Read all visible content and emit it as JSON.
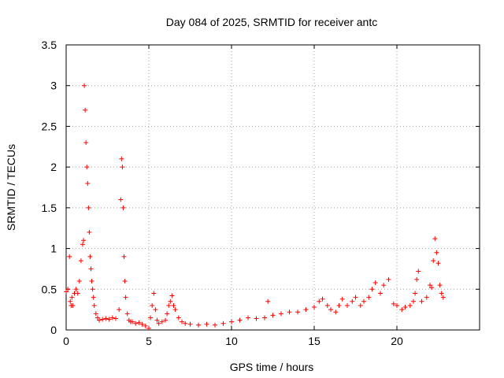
{
  "chart_data": {
    "type": "scatter",
    "title": "Day 084 of 2025, SRMTID for receiver antc",
    "xlabel": "GPS time / hours",
    "ylabel": "SRMTID / TECUs",
    "xlim": [
      0,
      25
    ],
    "ylim": [
      0,
      3.5
    ],
    "xticks": [
      0,
      5,
      10,
      15,
      20
    ],
    "xtick_labels": [
      "0",
      "5",
      "10",
      "15",
      "20"
    ],
    "yticks": [
      0,
      0.5,
      1,
      1.5,
      2,
      2.5,
      3,
      3.5
    ],
    "ytick_labels": [
      "0",
      "0.5",
      "1",
      "1.5",
      "2",
      "2.5",
      "3",
      "3.5"
    ],
    "grid": true,
    "marker": "+",
    "series": [
      {
        "name": "SRMTID",
        "color": "#ff0000",
        "x": [
          0.0,
          0.1,
          0.2,
          0.25,
          0.3,
          0.35,
          0.4,
          0.5,
          0.6,
          0.7,
          0.8,
          0.9,
          1.0,
          1.05,
          1.1,
          1.15,
          1.2,
          1.25,
          1.3,
          1.35,
          1.4,
          1.45,
          1.5,
          1.55,
          1.6,
          1.65,
          1.7,
          1.8,
          1.9,
          2.0,
          2.2,
          2.4,
          2.6,
          2.8,
          3.0,
          3.2,
          3.3,
          3.35,
          3.4,
          3.45,
          3.5,
          3.55,
          3.6,
          3.7,
          3.8,
          3.9,
          4.0,
          4.2,
          4.4,
          4.6,
          4.8,
          5.0,
          5.1,
          5.2,
          5.3,
          5.4,
          5.5,
          5.6,
          5.8,
          6.0,
          6.1,
          6.2,
          6.3,
          6.4,
          6.5,
          6.6,
          6.8,
          7.0,
          7.2,
          7.5,
          8.0,
          8.5,
          9.0,
          9.5,
          10.0,
          10.5,
          11.0,
          11.5,
          12.0,
          12.2,
          12.5,
          13.0,
          13.5,
          14.0,
          14.5,
          15.0,
          15.3,
          15.5,
          15.8,
          16.0,
          16.3,
          16.5,
          16.7,
          17.0,
          17.3,
          17.5,
          17.8,
          18.0,
          18.3,
          18.5,
          18.7,
          19.0,
          19.2,
          19.5,
          19.8,
          20.0,
          20.3,
          20.5,
          20.8,
          21.0,
          21.1,
          21.2,
          21.3,
          21.5,
          21.8,
          22.0,
          22.1,
          22.2,
          22.3,
          22.4,
          22.5,
          22.6,
          22.7,
          22.8
        ],
        "y": [
          0.47,
          0.5,
          0.9,
          0.35,
          0.3,
          0.4,
          0.3,
          0.45,
          0.5,
          0.45,
          0.6,
          0.85,
          1.05,
          1.1,
          3.0,
          2.7,
          2.3,
          2.0,
          1.8,
          1.5,
          1.2,
          0.9,
          0.75,
          0.6,
          0.5,
          0.4,
          0.3,
          0.2,
          0.15,
          0.12,
          0.13,
          0.14,
          0.13,
          0.15,
          0.14,
          0.25,
          1.6,
          2.1,
          2.0,
          1.5,
          0.9,
          0.6,
          0.4,
          0.2,
          0.12,
          0.1,
          0.1,
          0.08,
          0.09,
          0.07,
          0.05,
          0.02,
          0.15,
          0.3,
          0.45,
          0.25,
          0.12,
          0.08,
          0.1,
          0.12,
          0.2,
          0.3,
          0.35,
          0.42,
          0.3,
          0.25,
          0.15,
          0.1,
          0.08,
          0.07,
          0.06,
          0.07,
          0.06,
          0.08,
          0.1,
          0.12,
          0.15,
          0.14,
          0.15,
          0.35,
          0.18,
          0.2,
          0.22,
          0.22,
          0.25,
          0.28,
          0.35,
          0.38,
          0.3,
          0.25,
          0.22,
          0.3,
          0.38,
          0.3,
          0.35,
          0.4,
          0.3,
          0.35,
          0.4,
          0.5,
          0.58,
          0.45,
          0.55,
          0.62,
          0.32,
          0.3,
          0.25,
          0.28,
          0.3,
          0.35,
          0.45,
          0.62,
          0.72,
          0.35,
          0.4,
          0.55,
          0.52,
          0.85,
          1.12,
          0.95,
          0.82,
          0.55,
          0.45,
          0.4
        ]
      }
    ]
  }
}
